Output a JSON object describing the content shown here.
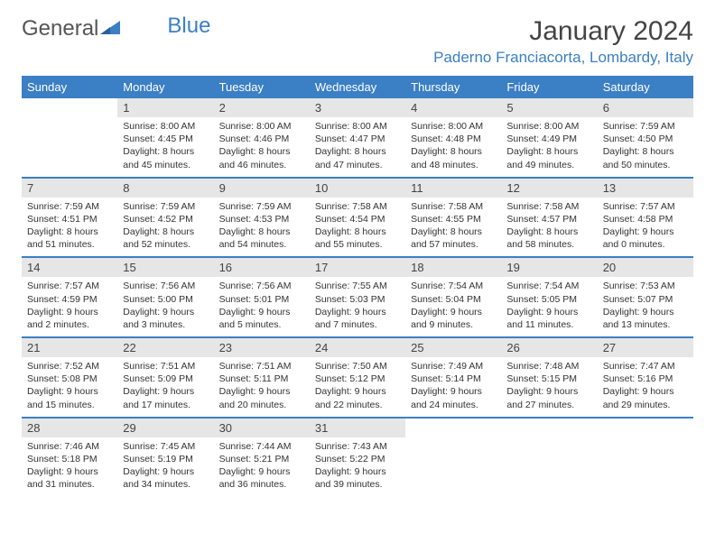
{
  "logo": {
    "part1": "General",
    "part2": "Blue"
  },
  "title": "January 2024",
  "location": "Paderno Franciacorta, Lombardy, Italy",
  "colors": {
    "header_bg": "#3b7fc4",
    "header_text": "#ffffff",
    "daynum_bg": "#e6e6e6",
    "border": "#3b7fc4",
    "body_bg": "#ffffff",
    "text": "#333333"
  },
  "typography": {
    "title_fontsize": 30,
    "location_fontsize": 17,
    "header_fontsize": 13,
    "cell_fontsize": 10.5
  },
  "day_headers": [
    "Sunday",
    "Monday",
    "Tuesday",
    "Wednesday",
    "Thursday",
    "Friday",
    "Saturday"
  ],
  "weeks": [
    [
      null,
      {
        "n": "1",
        "sr": "Sunrise: 8:00 AM",
        "ss": "Sunset: 4:45 PM",
        "dl": "Daylight: 8 hours and 45 minutes."
      },
      {
        "n": "2",
        "sr": "Sunrise: 8:00 AM",
        "ss": "Sunset: 4:46 PM",
        "dl": "Daylight: 8 hours and 46 minutes."
      },
      {
        "n": "3",
        "sr": "Sunrise: 8:00 AM",
        "ss": "Sunset: 4:47 PM",
        "dl": "Daylight: 8 hours and 47 minutes."
      },
      {
        "n": "4",
        "sr": "Sunrise: 8:00 AM",
        "ss": "Sunset: 4:48 PM",
        "dl": "Daylight: 8 hours and 48 minutes."
      },
      {
        "n": "5",
        "sr": "Sunrise: 8:00 AM",
        "ss": "Sunset: 4:49 PM",
        "dl": "Daylight: 8 hours and 49 minutes."
      },
      {
        "n": "6",
        "sr": "Sunrise: 7:59 AM",
        "ss": "Sunset: 4:50 PM",
        "dl": "Daylight: 8 hours and 50 minutes."
      }
    ],
    [
      {
        "n": "7",
        "sr": "Sunrise: 7:59 AM",
        "ss": "Sunset: 4:51 PM",
        "dl": "Daylight: 8 hours and 51 minutes."
      },
      {
        "n": "8",
        "sr": "Sunrise: 7:59 AM",
        "ss": "Sunset: 4:52 PM",
        "dl": "Daylight: 8 hours and 52 minutes."
      },
      {
        "n": "9",
        "sr": "Sunrise: 7:59 AM",
        "ss": "Sunset: 4:53 PM",
        "dl": "Daylight: 8 hours and 54 minutes."
      },
      {
        "n": "10",
        "sr": "Sunrise: 7:58 AM",
        "ss": "Sunset: 4:54 PM",
        "dl": "Daylight: 8 hours and 55 minutes."
      },
      {
        "n": "11",
        "sr": "Sunrise: 7:58 AM",
        "ss": "Sunset: 4:55 PM",
        "dl": "Daylight: 8 hours and 57 minutes."
      },
      {
        "n": "12",
        "sr": "Sunrise: 7:58 AM",
        "ss": "Sunset: 4:57 PM",
        "dl": "Daylight: 8 hours and 58 minutes."
      },
      {
        "n": "13",
        "sr": "Sunrise: 7:57 AM",
        "ss": "Sunset: 4:58 PM",
        "dl": "Daylight: 9 hours and 0 minutes."
      }
    ],
    [
      {
        "n": "14",
        "sr": "Sunrise: 7:57 AM",
        "ss": "Sunset: 4:59 PM",
        "dl": "Daylight: 9 hours and 2 minutes."
      },
      {
        "n": "15",
        "sr": "Sunrise: 7:56 AM",
        "ss": "Sunset: 5:00 PM",
        "dl": "Daylight: 9 hours and 3 minutes."
      },
      {
        "n": "16",
        "sr": "Sunrise: 7:56 AM",
        "ss": "Sunset: 5:01 PM",
        "dl": "Daylight: 9 hours and 5 minutes."
      },
      {
        "n": "17",
        "sr": "Sunrise: 7:55 AM",
        "ss": "Sunset: 5:03 PM",
        "dl": "Daylight: 9 hours and 7 minutes."
      },
      {
        "n": "18",
        "sr": "Sunrise: 7:54 AM",
        "ss": "Sunset: 5:04 PM",
        "dl": "Daylight: 9 hours and 9 minutes."
      },
      {
        "n": "19",
        "sr": "Sunrise: 7:54 AM",
        "ss": "Sunset: 5:05 PM",
        "dl": "Daylight: 9 hours and 11 minutes."
      },
      {
        "n": "20",
        "sr": "Sunrise: 7:53 AM",
        "ss": "Sunset: 5:07 PM",
        "dl": "Daylight: 9 hours and 13 minutes."
      }
    ],
    [
      {
        "n": "21",
        "sr": "Sunrise: 7:52 AM",
        "ss": "Sunset: 5:08 PM",
        "dl": "Daylight: 9 hours and 15 minutes."
      },
      {
        "n": "22",
        "sr": "Sunrise: 7:51 AM",
        "ss": "Sunset: 5:09 PM",
        "dl": "Daylight: 9 hours and 17 minutes."
      },
      {
        "n": "23",
        "sr": "Sunrise: 7:51 AM",
        "ss": "Sunset: 5:11 PM",
        "dl": "Daylight: 9 hours and 20 minutes."
      },
      {
        "n": "24",
        "sr": "Sunrise: 7:50 AM",
        "ss": "Sunset: 5:12 PM",
        "dl": "Daylight: 9 hours and 22 minutes."
      },
      {
        "n": "25",
        "sr": "Sunrise: 7:49 AM",
        "ss": "Sunset: 5:14 PM",
        "dl": "Daylight: 9 hours and 24 minutes."
      },
      {
        "n": "26",
        "sr": "Sunrise: 7:48 AM",
        "ss": "Sunset: 5:15 PM",
        "dl": "Daylight: 9 hours and 27 minutes."
      },
      {
        "n": "27",
        "sr": "Sunrise: 7:47 AM",
        "ss": "Sunset: 5:16 PM",
        "dl": "Daylight: 9 hours and 29 minutes."
      }
    ],
    [
      {
        "n": "28",
        "sr": "Sunrise: 7:46 AM",
        "ss": "Sunset: 5:18 PM",
        "dl": "Daylight: 9 hours and 31 minutes."
      },
      {
        "n": "29",
        "sr": "Sunrise: 7:45 AM",
        "ss": "Sunset: 5:19 PM",
        "dl": "Daylight: 9 hours and 34 minutes."
      },
      {
        "n": "30",
        "sr": "Sunrise: 7:44 AM",
        "ss": "Sunset: 5:21 PM",
        "dl": "Daylight: 9 hours and 36 minutes."
      },
      {
        "n": "31",
        "sr": "Sunrise: 7:43 AM",
        "ss": "Sunset: 5:22 PM",
        "dl": "Daylight: 9 hours and 39 minutes."
      },
      null,
      null,
      null
    ]
  ]
}
